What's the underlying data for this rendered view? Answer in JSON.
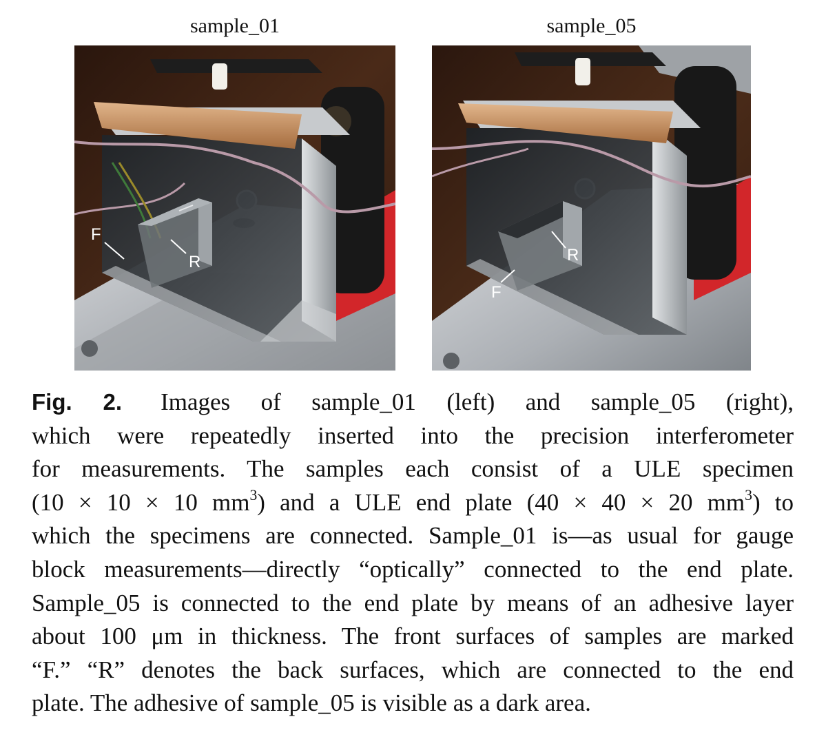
{
  "panels": [
    {
      "title": "sample_01",
      "labels": {
        "front": "F",
        "back": "R"
      }
    },
    {
      "title": "sample_05",
      "labels": {
        "front": "F",
        "back": "R"
      }
    }
  ],
  "caption": {
    "label": "Fig. 2.",
    "lines": [
      "Images of sample_01 (left) and sample_05 (right),",
      "which were repeatedly inserted into the precision interferometer",
      "for measurements. The samples each consist of a ULE specimen",
      [
        "(10 × 10 × 10 mm",
        "3",
        ") and a ULE end plate (40 × 40 × 20 mm",
        "3",
        ") to"
      ],
      "which the specimens are connected. Sample_01 is—as usual for gauge",
      "block measurements—directly “optically” connected to the end plate.",
      "Sample_05 is connected to the end plate by means of an adhesive layer",
      "about 100 μm in thickness. The front surfaces of samples are marked",
      "“F.” “R” denotes the back surfaces, which are connected to the end",
      "plate. The adhesive of sample_05 is visible as a dark area."
    ]
  },
  "colors": {
    "background_wall": "#3a2014",
    "aluminum": "#b9bcc0",
    "copper_tape": "#c8905e",
    "red_base": "#d2262a",
    "black_mount": "#181818"
  }
}
